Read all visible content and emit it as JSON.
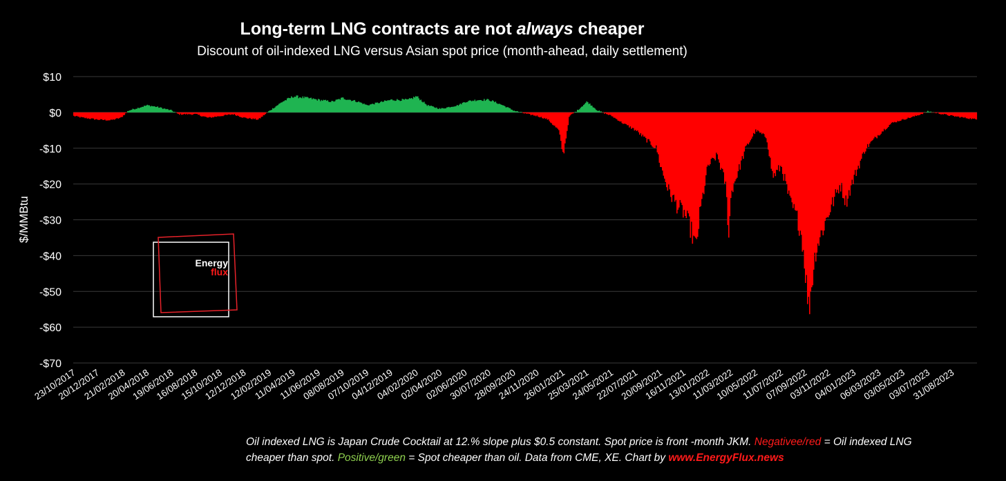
{
  "chart_data": {
    "type": "area",
    "title": "Long-term LNG contracts are not always cheaper",
    "title_parts": {
      "before": "Long-term LNG contracts are not ",
      "emphasis": "always",
      "after": " cheaper"
    },
    "subtitle": "Discount of oil-indexed LNG versus Asian spot price (month-ahead, daily settlement)",
    "ylabel": "$/MMBtu",
    "xlabel": "",
    "ylim": [
      -70,
      10
    ],
    "yticks": [
      10,
      0,
      -10,
      -20,
      -30,
      -40,
      -50,
      -60,
      -70
    ],
    "ytick_labels": [
      "$10",
      "$0",
      "-$10",
      "-$20",
      "-$30",
      "-$40",
      "-$50",
      "-$60",
      "-$70"
    ],
    "x_ticks": [
      "23/10/2017",
      "20/12/2017",
      "21/02/2018",
      "20/04/2018",
      "19/06/2018",
      "16/08/2018",
      "15/10/2018",
      "12/12/2018",
      "12/02/2019",
      "11/04/2019",
      "11/06/2019",
      "08/08/2019",
      "07/10/2019",
      "04/12/2019",
      "04/02/2020",
      "02/04/2020",
      "02/06/2020",
      "30/07/2020",
      "28/09/2020",
      "24/11/2020",
      "26/01/2021",
      "25/03/2021",
      "24/05/2021",
      "22/07/2021",
      "20/09/2021",
      "16/11/2021",
      "13/01/2022",
      "11/03/2022",
      "10/05/2022",
      "11/07/2022",
      "07/09/2022",
      "03/11/2022",
      "04/01/2023",
      "06/03/2023",
      "03/05/2023",
      "03/07/2023",
      "31/08/2023"
    ],
    "grid": true,
    "positive_color": "#1fb451",
    "negative_color": "#ff0000",
    "series": [
      {
        "x": [
          "23/10/2017",
          "15/11/2017",
          "20/12/2017",
          "20/01/2018",
          "15/02/2018",
          "05/03/2018",
          "20/04/2018",
          "15/05/2018",
          "19/06/2018",
          "05/07/2018",
          "16/08/2018",
          "15/09/2018",
          "15/10/2018",
          "15/11/2018",
          "12/12/2018",
          "15/01/2019",
          "12/02/2019",
          "15/03/2019",
          "11/04/2019",
          "15/05/2019",
          "11/06/2019",
          "15/07/2019",
          "08/08/2019",
          "15/09/2019",
          "07/10/2019",
          "15/11/2019",
          "04/12/2019",
          "15/01/2020",
          "04/02/2020",
          "01/03/2020",
          "02/04/2020",
          "15/05/2020",
          "02/06/2020",
          "01/07/2020",
          "30/07/2020",
          "01/09/2020",
          "28/09/2020",
          "01/11/2020",
          "24/11/2020",
          "20/12/2020",
          "15/01/2021",
          "26/01/2021",
          "10/02/2021",
          "01/03/2021",
          "25/03/2021",
          "20/04/2021",
          "24/05/2021",
          "20/06/2021",
          "22/07/2021",
          "20/08/2021",
          "10/09/2021",
          "20/09/2021",
          "10/10/2021",
          "30/10/2021",
          "16/11/2021",
          "01/12/2021",
          "15/12/2021",
          "25/12/2021",
          "13/01/2022",
          "05/02/2022",
          "25/02/2022",
          "05/03/2022",
          "11/03/2022",
          "01/04/2022",
          "15/04/2022",
          "10/05/2022",
          "05/06/2022",
          "20/06/2022",
          "11/07/2022",
          "01/08/2022",
          "20/08/2022",
          "30/08/2022",
          "07/09/2022",
          "15/09/2022",
          "03/10/2022",
          "03/11/2022",
          "01/12/2022",
          "15/12/2022",
          "04/01/2023",
          "01/02/2023",
          "06/03/2023",
          "05/04/2023",
          "03/05/2023",
          "03/06/2023",
          "03/07/2023",
          "31/08/2023",
          "31/10/2023"
        ],
        "values": [
          -1,
          -1.5,
          -2,
          -2.2,
          -1.5,
          0.5,
          2,
          1.5,
          0.5,
          -0.5,
          -0.5,
          -1.5,
          -1,
          -0.5,
          -1.5,
          -2,
          0.5,
          3,
          4.5,
          4,
          3.5,
          3,
          4,
          3,
          2,
          3,
          3.5,
          3.5,
          4.5,
          2,
          1,
          2,
          3,
          3.5,
          3.5,
          2,
          0.5,
          -0.5,
          -1,
          -2,
          -5,
          -12,
          -1,
          0.5,
          3,
          0.5,
          -1,
          -3,
          -5,
          -8,
          -10,
          -15,
          -22,
          -26,
          -28,
          -32,
          -38,
          -28,
          -15,
          -12,
          -20,
          -34,
          -22,
          -15,
          -10,
          -5,
          -7,
          -18,
          -15,
          -25,
          -30,
          -35,
          -44,
          -55,
          -38,
          -28,
          -20,
          -25,
          -18,
          -10,
          -6,
          -3,
          -2,
          -1,
          0.3,
          -1,
          -2
        ]
      }
    ],
    "annotations": {
      "footnote": {
        "line1_text": "Oil indexed LNG is Japan Crude Cocktail at 12.% slope plus $0.5 constant. Spot price is front -month JKM. ",
        "line1_neg": "Negativee/red",
        "line1_after": " = Oil indexed LNG",
        "line2_text": "cheaper than spot. ",
        "line2_pos": "Positive/green",
        "line2_after": " = Spot cheaper than oil. Data from CME, XE. Chart by ",
        "link": "www.EnergyFlux.news"
      },
      "logo": {
        "line1": "Energy",
        "line2": "flux"
      }
    }
  }
}
